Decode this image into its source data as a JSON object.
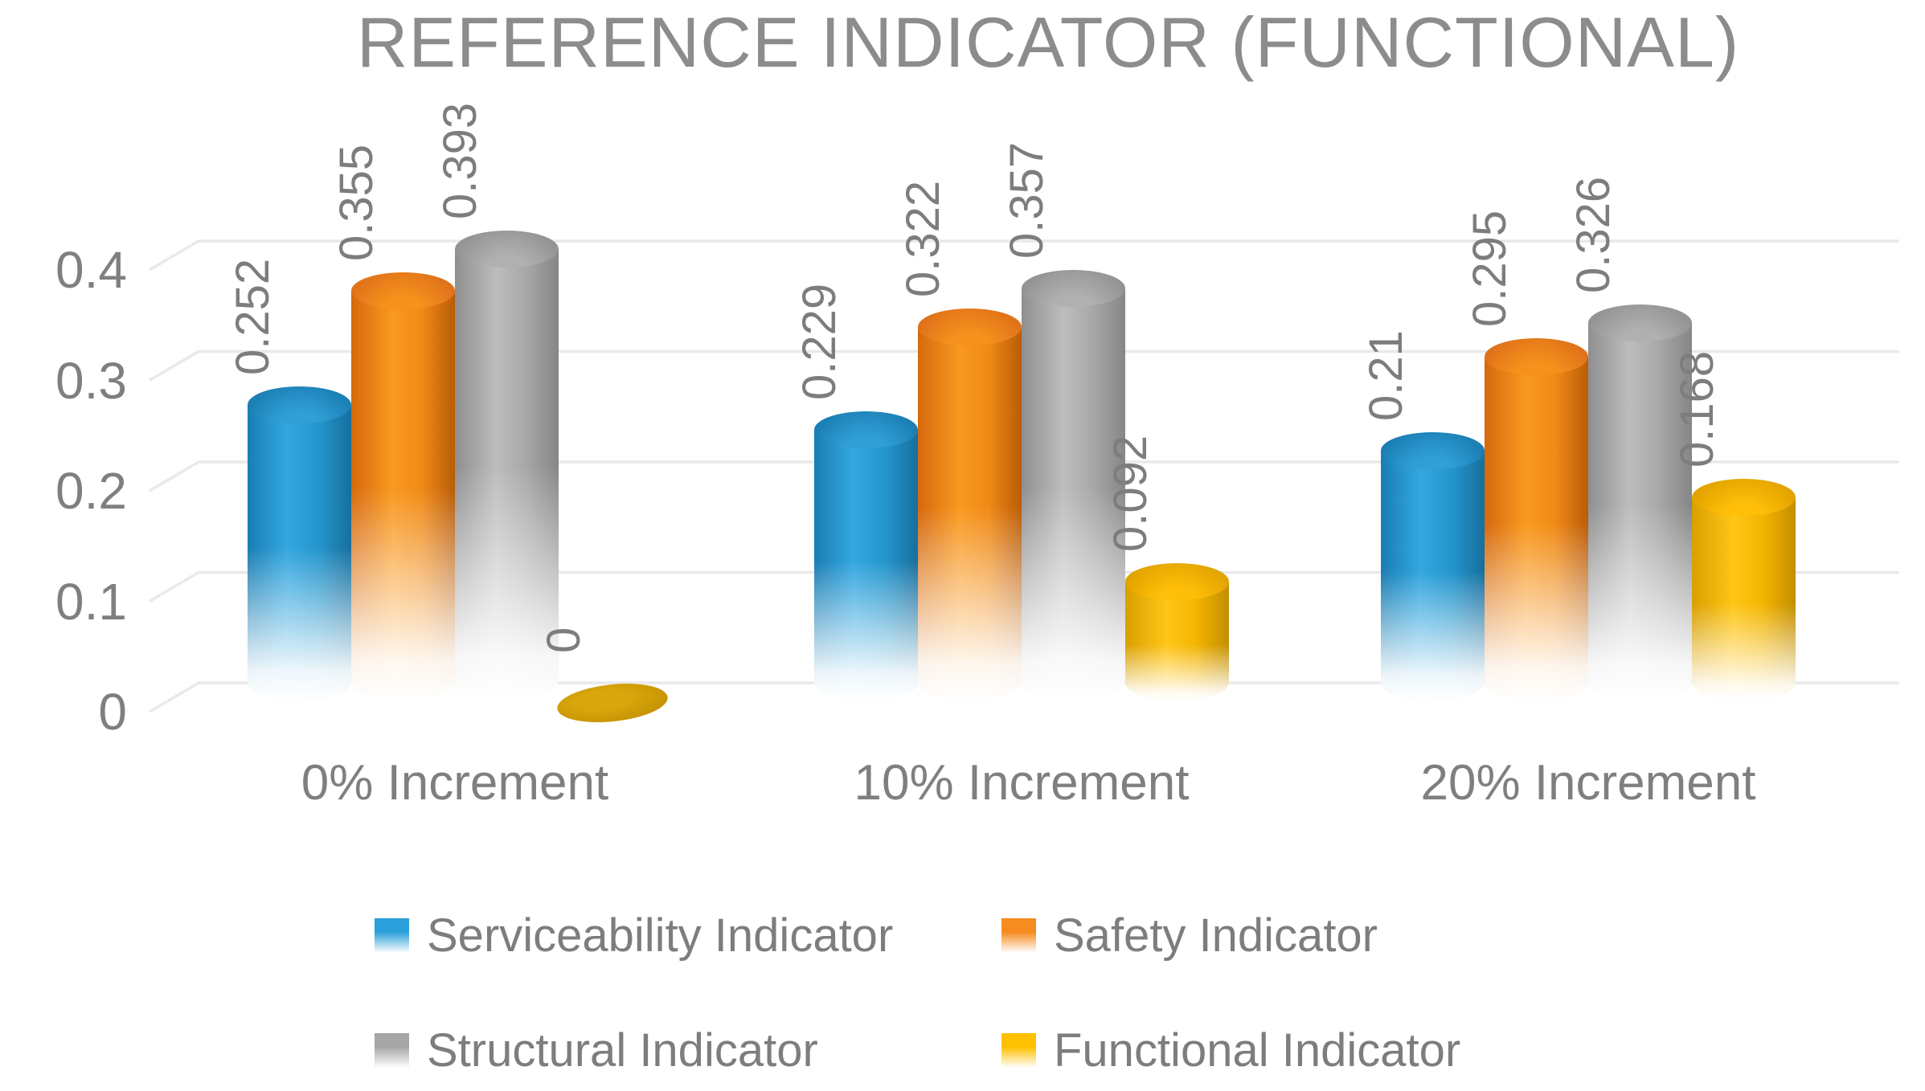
{
  "title": "REFERENCE INDICATOR (FUNCTIONAL)",
  "chart_data": {
    "type": "bar",
    "subtype": "3d-cylinder",
    "title": "REFERENCE INDICATOR (FUNCTIONAL)",
    "categories": [
      "0% Increment",
      "10% Increment",
      "20% Increment"
    ],
    "series": [
      {
        "name": "Serviceability Indicator",
        "color": "#2B9FD9",
        "values": [
          0.252,
          0.229,
          0.21
        ],
        "labels": [
          "0.252",
          "0.229",
          "0.21"
        ]
      },
      {
        "name": "Safety Indicator",
        "color": "#F68B1F",
        "values": [
          0.355,
          0.322,
          0.295
        ],
        "labels": [
          "0.355",
          "0.322",
          "0.295"
        ]
      },
      {
        "name": "Structural Indicator",
        "color": "#A6A6A6",
        "values": [
          0.393,
          0.357,
          0.326
        ],
        "labels": [
          "0.393",
          "0.357",
          "0.326"
        ]
      },
      {
        "name": "Functional Indicator",
        "color": "#FFC000",
        "values": [
          0,
          0.092,
          0.168
        ],
        "labels": [
          "0",
          "0.092",
          "0.168"
        ]
      }
    ],
    "y_ticks": [
      "0.4",
      "0.3",
      "0.2",
      "0.1",
      "0"
    ],
    "y_tick_values": [
      0.4,
      0.3,
      0.2,
      0.1,
      0
    ],
    "ylim": [
      0,
      0.45
    ],
    "xlabel": "",
    "ylabel": "",
    "grid": true,
    "gridline_color": "#E9E9E9",
    "text_color": "#7D7D7D",
    "title_color": "#8C8C8C",
    "legend_position": "bottom",
    "legend_rows": [
      [
        "Serviceability Indicator",
        "Safety Indicator"
      ],
      [
        "Structural Indicator",
        "Functional Indicator"
      ]
    ]
  }
}
